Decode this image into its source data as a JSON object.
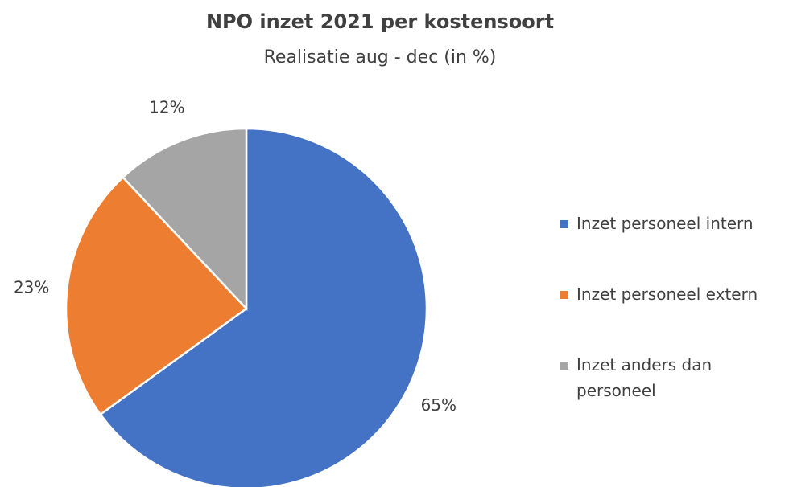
{
  "chart_data": {
    "type": "pie",
    "title": "NPO inzet 2021 per kostensoort",
    "subtitle": "Realisatie aug - dec (in %)",
    "categories": [
      "Inzet personeel intern",
      "Inzet personeel extern",
      "Inzet anders dan personeel"
    ],
    "values": [
      65,
      23,
      12
    ],
    "value_labels": [
      "65%",
      "23%",
      "12%"
    ],
    "colors": [
      "#4472c4",
      "#ed7d31",
      "#a5a5a5"
    ],
    "legend": "right"
  }
}
